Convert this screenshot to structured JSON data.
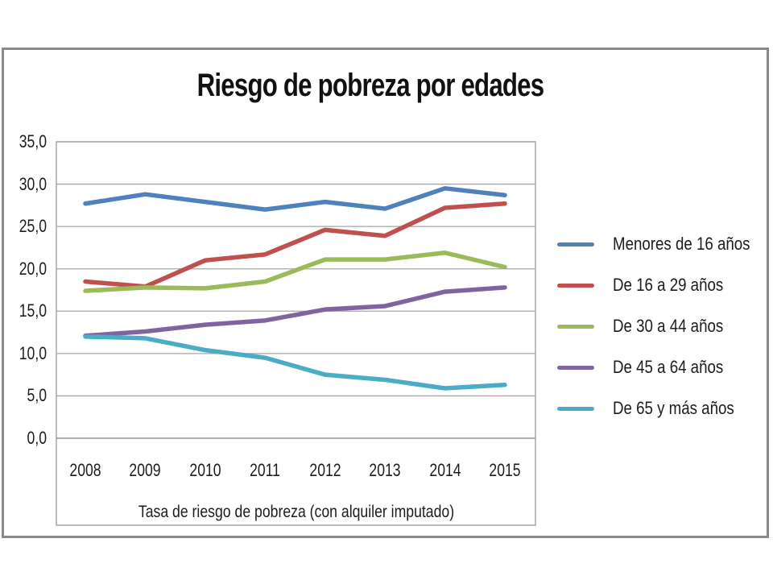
{
  "slide": {
    "background": "#ffffff",
    "frame_border_color": "#8a8a8a"
  },
  "chart_data": {
    "type": "line",
    "title": "Riesgo de pobreza por edades",
    "xlabel": "Tasa de riesgo de pobreza (con alquiler imputado)",
    "ylabel": "",
    "categories": [
      "2008",
      "2009",
      "2010",
      "2011",
      "2012",
      "2013",
      "2014",
      "2015"
    ],
    "series": [
      {
        "name": "Menores de 16 años",
        "color": "#4F81BD",
        "values": [
          27.7,
          28.8,
          27.9,
          27.0,
          27.9,
          27.1,
          29.5,
          28.7
        ]
      },
      {
        "name": "De 16 a 29 años",
        "color": "#C0504D",
        "values": [
          18.5,
          17.9,
          21.0,
          21.7,
          24.6,
          23.9,
          27.2,
          27.7
        ]
      },
      {
        "name": "De 30 a 44 años",
        "color": "#9BBB59",
        "values": [
          17.4,
          17.8,
          17.7,
          18.5,
          21.1,
          21.1,
          21.9,
          20.2
        ]
      },
      {
        "name": "De 45 a 64 años",
        "color": "#8064A2",
        "values": [
          12.1,
          12.6,
          13.4,
          13.9,
          15.2,
          15.6,
          17.3,
          17.8
        ]
      },
      {
        "name": "De 65 y más años",
        "color": "#4BACC6",
        "values": [
          12.0,
          11.8,
          10.4,
          9.5,
          7.5,
          6.9,
          5.9,
          6.3
        ]
      }
    ],
    "ylim": [
      0,
      35
    ],
    "ytick_step": 5,
    "decimal_separator": ",",
    "grid": true,
    "gridline_color": "#a6a6a6",
    "axis_line_color": "#9a9a9a",
    "text_color": "#1c1c1c",
    "legend_position": "right"
  }
}
